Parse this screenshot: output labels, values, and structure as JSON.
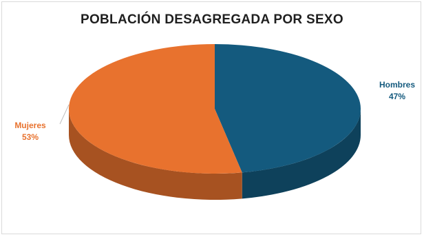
{
  "chart_data": {
    "type": "pie",
    "title": "POBLACIÓN DESAGREGADA POR SEXO",
    "categories": [
      "Hombres",
      "Mujeres"
    ],
    "values": [
      47,
      53
    ],
    "data_labels": [
      "47%",
      "53%"
    ],
    "colors": [
      "#145a7e",
      "#e8722e"
    ],
    "style": "3d",
    "legend": "none"
  }
}
